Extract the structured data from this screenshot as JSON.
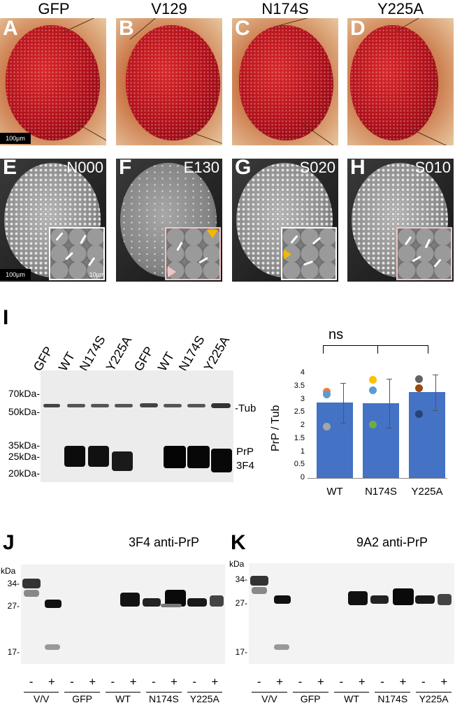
{
  "top_panels": [
    {
      "letter": "A",
      "column_title": "GFP",
      "scale": "100µm"
    },
    {
      "letter": "B",
      "column_title": "V129"
    },
    {
      "letter": "C",
      "column_title": "N174S"
    },
    {
      "letter": "D",
      "column_title": "Y225A"
    }
  ],
  "sem_panels": [
    {
      "letter": "E",
      "genotype": "N000",
      "scale": "100µm",
      "inset_scale": "10µm"
    },
    {
      "letter": "F",
      "genotype": "E130"
    },
    {
      "letter": "G",
      "genotype": "S020"
    },
    {
      "letter": "H",
      "genotype": "S010"
    }
  ],
  "panel_I": {
    "letter": "I",
    "lanes": [
      "GFP",
      "WT",
      "N174S",
      "Y225A",
      "GFP",
      "WT",
      "N174S",
      "Y225A"
    ],
    "markers": [
      "70kDa-",
      "50kDa-",
      "35kDa-",
      "25kDa-",
      "20kDa-"
    ],
    "annotations": {
      "tub": "-Tub",
      "prp": "PrP",
      "ab": "3F4"
    }
  },
  "chart_data": {
    "type": "bar",
    "categories": [
      "WT",
      "N174S",
      "Y225A"
    ],
    "values": [
      2.87,
      2.85,
      3.27
    ],
    "error": [
      0.75,
      0.93,
      0.68
    ],
    "points": [
      {
        "category": "WT",
        "y": 3.3,
        "color": "#ed7d31"
      },
      {
        "category": "WT",
        "y": 3.2,
        "color": "#5b9bd5"
      },
      {
        "category": "WT",
        "y": 1.97,
        "color": "#a5a5a5"
      },
      {
        "category": "N174S",
        "y": 3.75,
        "color": "#ffc000"
      },
      {
        "category": "N174S",
        "y": 3.35,
        "color": "#5b9bd5"
      },
      {
        "category": "N174S",
        "y": 2.05,
        "color": "#70ad47"
      },
      {
        "category": "Y225A",
        "y": 3.8,
        "color": "#636363"
      },
      {
        "category": "Y225A",
        "y": 3.45,
        "color": "#9e480e"
      },
      {
        "category": "Y225A",
        "y": 2.45,
        "color": "#264478"
      }
    ],
    "ylabel": "PrP / Tub",
    "ylim": [
      0,
      4
    ],
    "yticks": [
      "0",
      "0.5",
      "1",
      "1.5",
      "2",
      "2.5",
      "3",
      "3.5",
      "4"
    ],
    "significance": "ns",
    "color": "#4472c4"
  },
  "panel_J": {
    "letter": "J",
    "title": "3F4 anti-PrP",
    "unit": "kDa",
    "markers": [
      "34-",
      "27-",
      "17-"
    ],
    "signs": [
      "-",
      "+",
      "-",
      "+",
      "-",
      "+",
      "-",
      "+",
      "-",
      "+"
    ],
    "groups": [
      "V/V",
      "GFP",
      "WT",
      "N174S",
      "Y225A"
    ]
  },
  "panel_K": {
    "letter": "K",
    "title": "9A2 anti-PrP",
    "unit": "kDa",
    "markers": [
      "34-",
      "27-",
      "17-"
    ],
    "signs": [
      "-",
      "+",
      "-",
      "+",
      "-",
      "+",
      "-",
      "+",
      "-",
      "+"
    ],
    "groups": [
      "V/V",
      "GFP",
      "WT",
      "N174S",
      "Y225A"
    ]
  }
}
